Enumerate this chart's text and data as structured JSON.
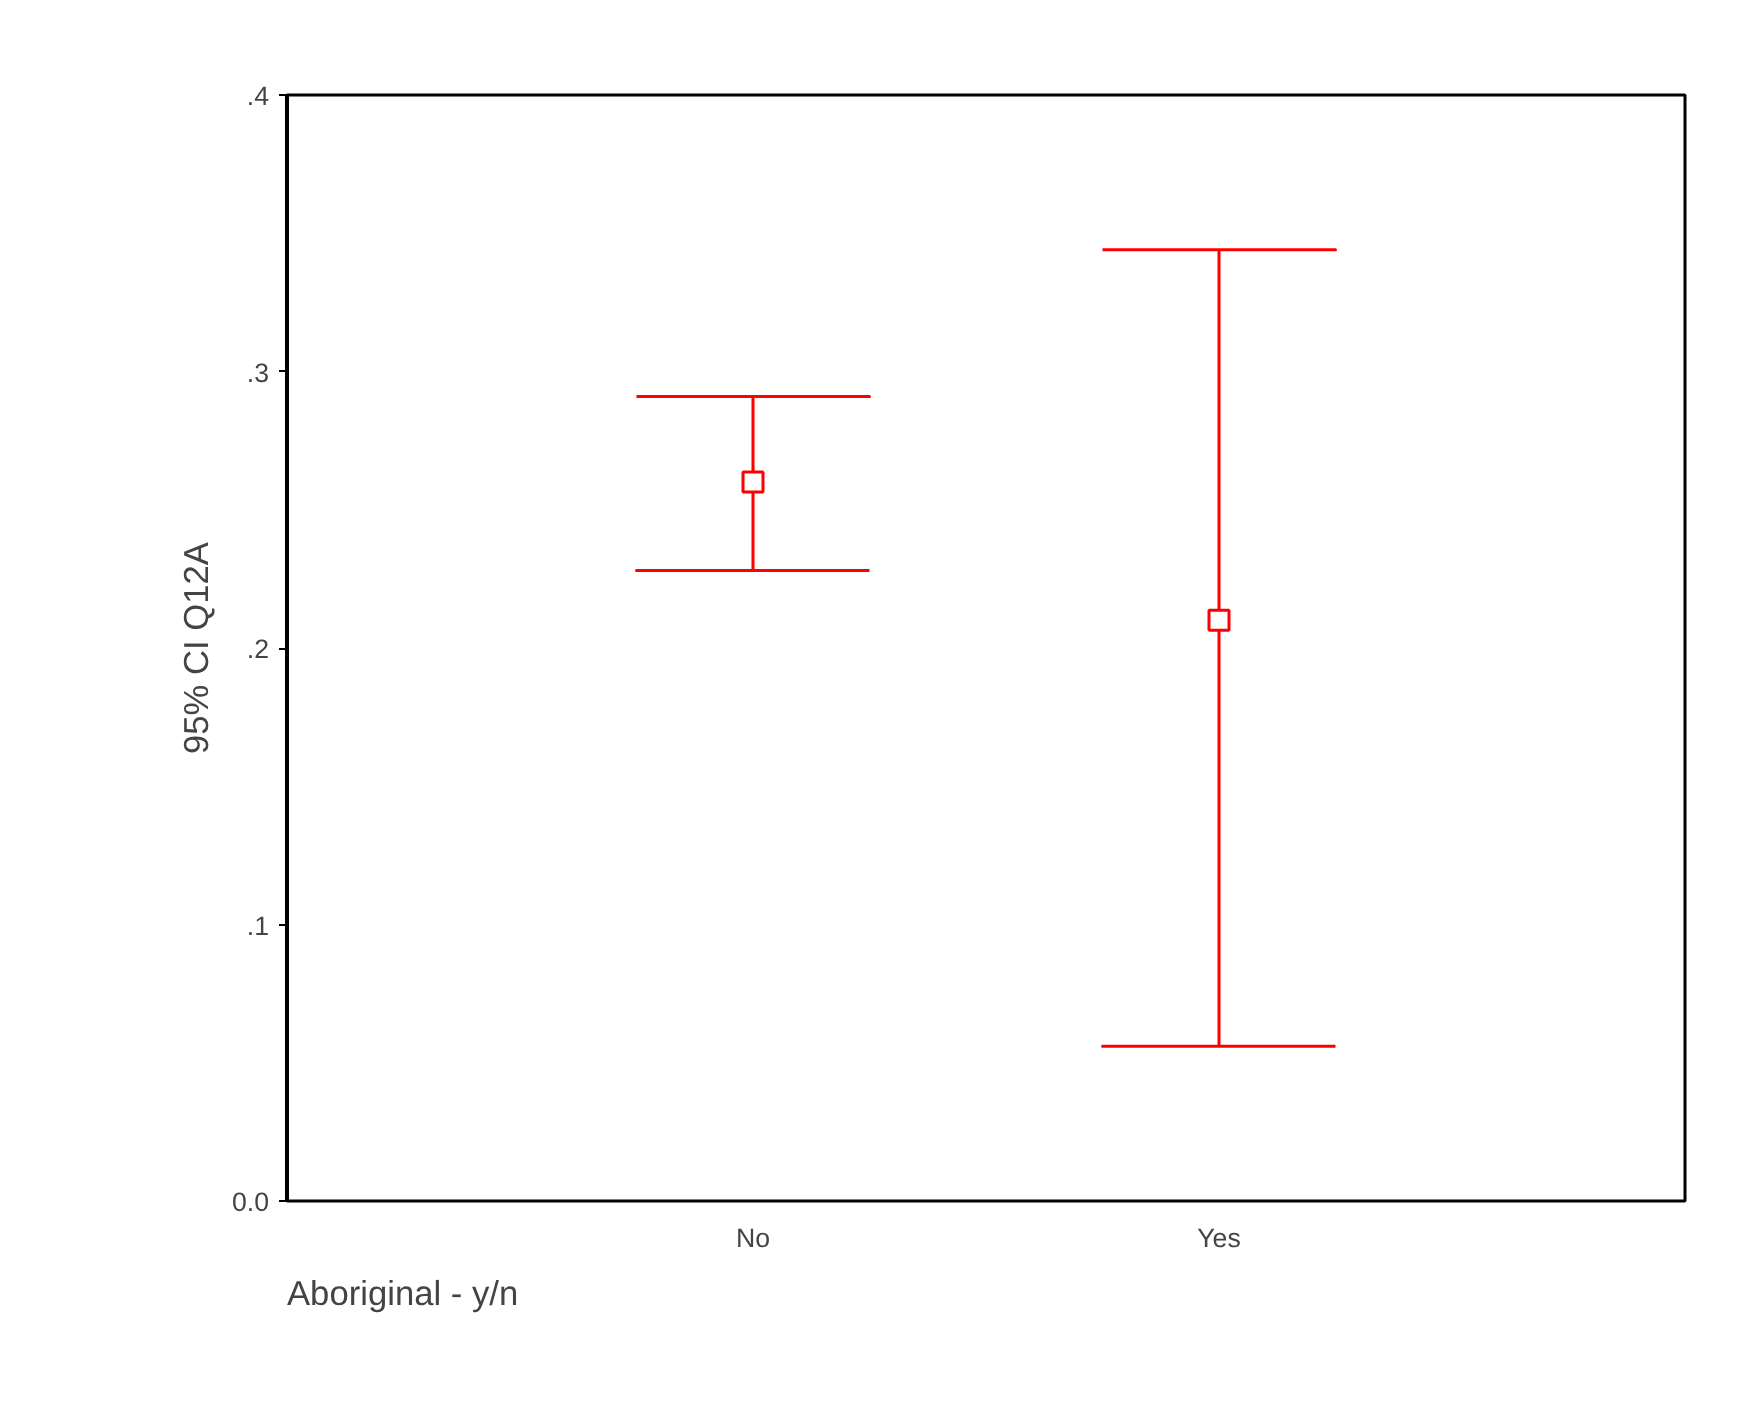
{
  "chart_data": {
    "type": "scatter",
    "categories": [
      "No",
      "Yes"
    ],
    "values": [
      0.26,
      0.21
    ],
    "errors": [
      [
        0.228,
        0.291
      ],
      [
        0.056,
        0.344
      ]
    ],
    "color": "#ff0000",
    "marker": "square",
    "ylim": [
      0,
      0.4
    ],
    "yticks": [
      {
        "value": 0,
        "label": "0.0"
      },
      {
        "value": 0.1,
        "label": ".1"
      },
      {
        "value": 0.2,
        "label": ".2"
      },
      {
        "value": 0.3,
        "label": ".3"
      },
      {
        "value": 0.4,
        "label": ".4"
      }
    ],
    "xlabel": "Aboriginal - y/n",
    "ylabel": "95% CI Q12A",
    "grid": false
  }
}
